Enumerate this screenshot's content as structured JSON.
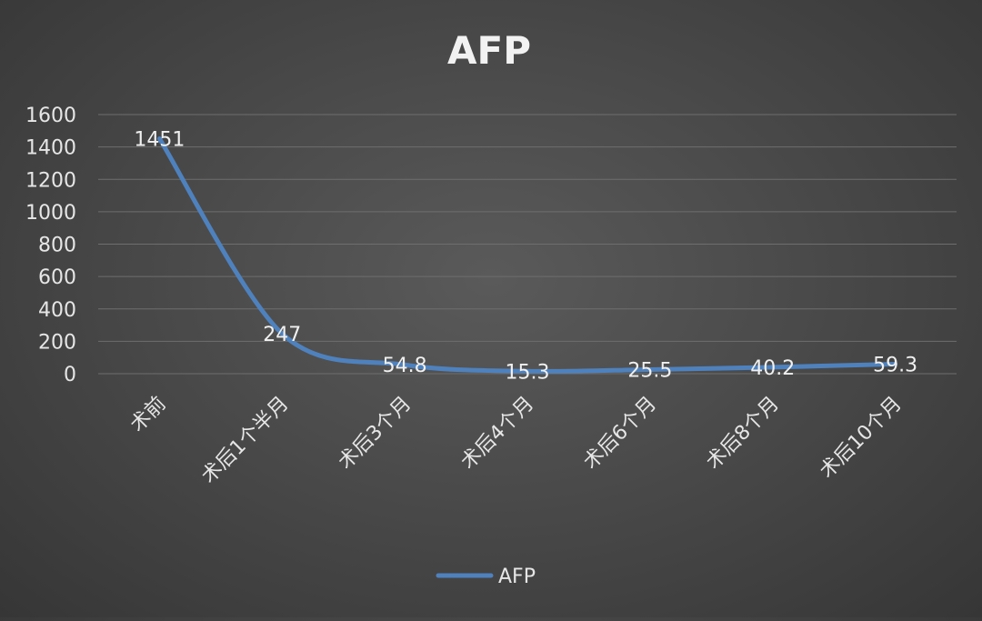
{
  "chart_data": {
    "type": "line",
    "title": "AFP",
    "categories": [
      "术前",
      "术后1个半月",
      "术后3个月",
      "术后4个月",
      "术后6个月",
      "术后8个月",
      "术后10个月"
    ],
    "series": [
      {
        "name": "AFP",
        "values": [
          1451,
          247,
          54.8,
          15.3,
          25.5,
          40.2,
          59.3
        ],
        "labels": [
          "1451",
          "247",
          "54.8",
          "15.3",
          "25.5",
          "40.2",
          "59.3"
        ]
      }
    ],
    "ylim": [
      0,
      1600
    ],
    "yticks": [
      "0",
      "200",
      "400",
      "600",
      "800",
      "1000",
      "1200",
      "1400",
      "1600"
    ],
    "grid": true,
    "legend_position": "bottom",
    "colors": {
      "line": "#4f81bd",
      "text": "#e6e6e6",
      "grid": "#6e6e6e"
    }
  }
}
